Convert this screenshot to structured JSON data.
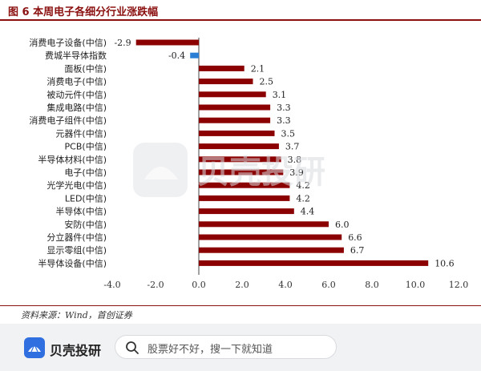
{
  "title": "图 6 本周电子各细分行业涨跌幅",
  "source_note": "资料来源：Wind，首创证券",
  "watermark_text": "贝壳投研",
  "bottom_bar": {
    "brand": "贝壳投研",
    "search_placeholder": "股票好不好，搜一下就知道"
  },
  "colors": {
    "negative_bar": "#8b0000",
    "highlight_bar": "#2a7fd4",
    "positive_bar": "#8b0000",
    "title": "#8b1010"
  },
  "chart_data": {
    "type": "bar",
    "orientation": "horizontal",
    "categories": [
      "消费电子设备(中信)",
      "费城半导体指数",
      "面板(中信)",
      "消费电子(中信)",
      "被动元件(中信)",
      "集成电路(中信)",
      "消费电子组件(中信)",
      "元器件(中信)",
      "PCB(中信)",
      "半导体材料(中信)",
      "电子(中信)",
      "光学光电(中信)",
      "LED(中信)",
      "半导体(中信)",
      "安防(中信)",
      "分立器件(中信)",
      "显示零组(中信)",
      "半导体设备(中信)"
    ],
    "values": [
      -2.9,
      -0.4,
      2.1,
      2.5,
      3.1,
      3.3,
      3.3,
      3.5,
      3.7,
      3.8,
      3.9,
      4.2,
      4.2,
      4.4,
      6.0,
      6.6,
      6.7,
      10.6
    ],
    "value_labels": [
      "-2.9",
      "-0.4",
      "2.1",
      "2.5",
      "3.1",
      "3.3",
      "3.3",
      "3.5",
      "3.7",
      "3.8",
      "3.9",
      "4.2",
      "4.2",
      "4.4",
      "6.0",
      "6.6",
      "6.7",
      "10.6"
    ],
    "highlight_index": 1,
    "xlim": [
      -4.0,
      12.0
    ],
    "xticks": [
      -4.0,
      -2.0,
      0.0,
      2.0,
      4.0,
      6.0,
      8.0,
      10.0,
      12.0
    ],
    "xtick_labels": [
      "-4.0",
      "-2.0",
      "0.0",
      "2.0",
      "4.0",
      "6.0",
      "8.0",
      "10.0",
      "12.0"
    ],
    "xlabel": "",
    "ylabel": "",
    "grid": false,
    "legend": "none"
  }
}
